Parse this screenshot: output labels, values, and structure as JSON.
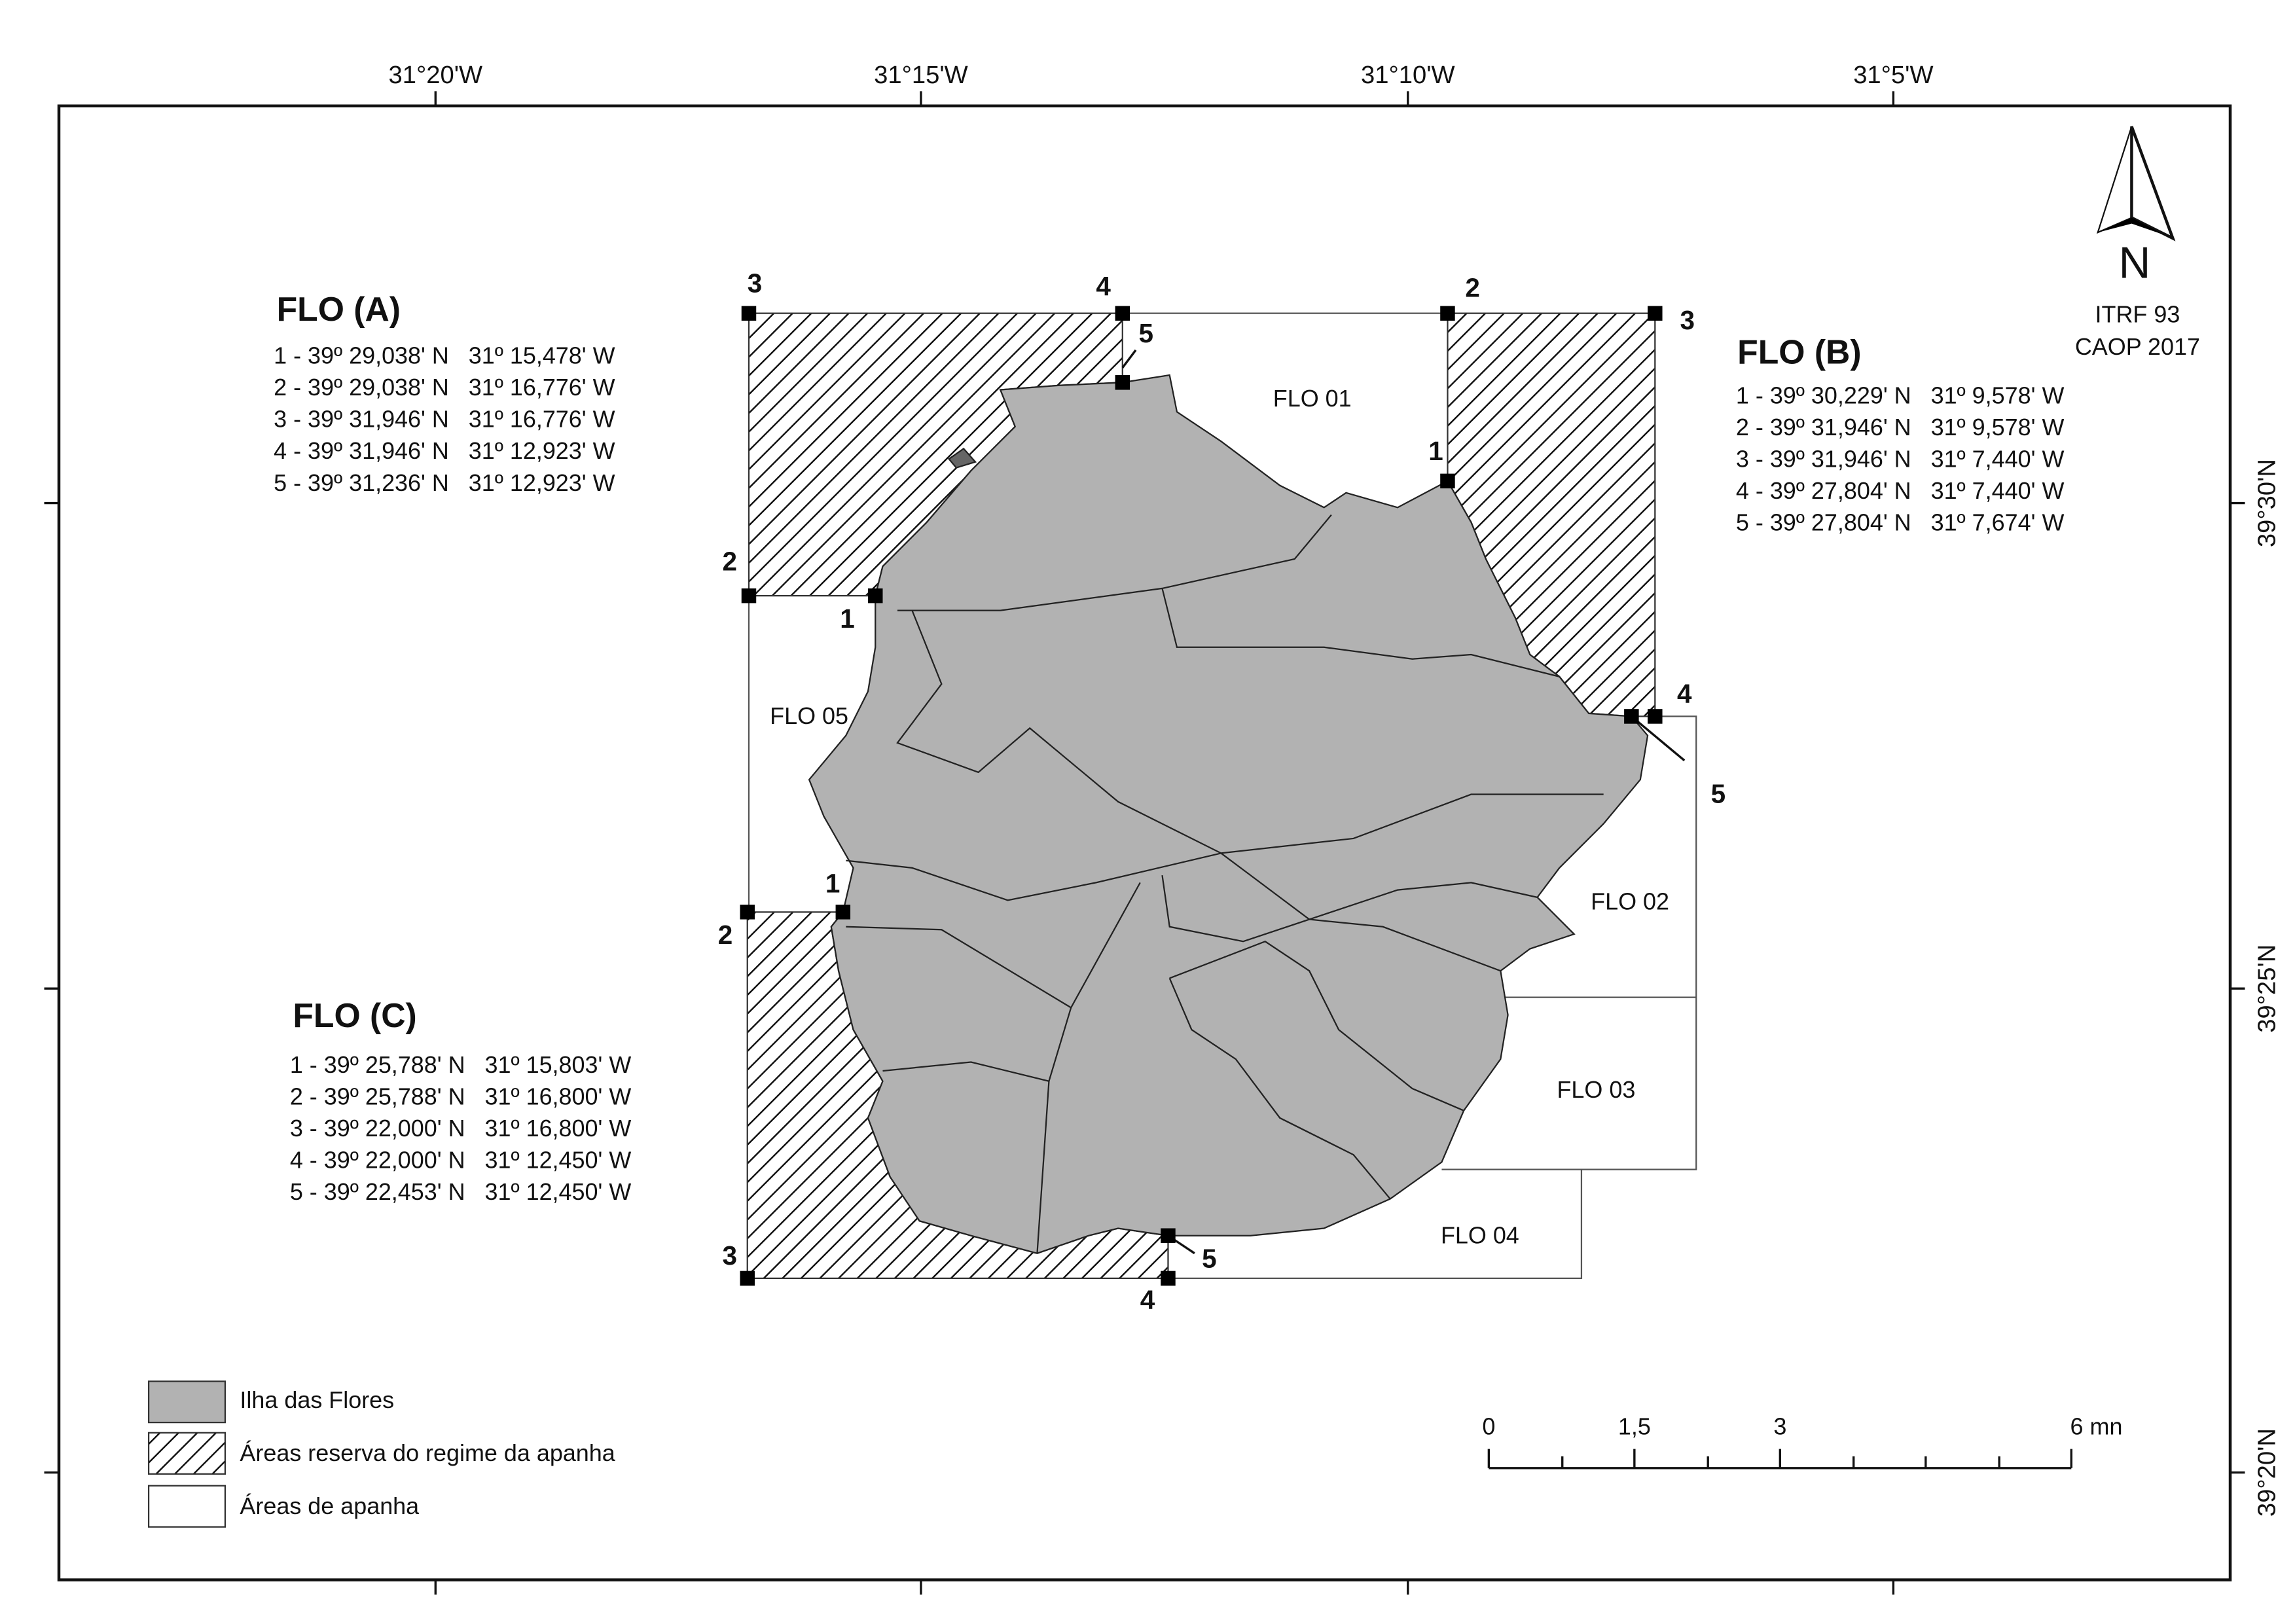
{
  "map": {
    "longitude_labels": [
      "31°20'W",
      "31°15'W",
      "31°10'W",
      "31°5'W"
    ],
    "latitude_labels": [
      "39°30'N",
      "39°25'N",
      "39°20'N"
    ],
    "north": "N",
    "datum": [
      "ITRF 93",
      "CAOP 2017"
    ],
    "areas": [
      "FLO 01",
      "FLO 02",
      "FLO 03",
      "FLO 04",
      "FLO 05"
    ],
    "reserves": [
      {
        "title": "FLO (A)",
        "markers": [
          "1",
          "2",
          "3",
          "4",
          "5"
        ],
        "points": [
          "1 - 39º 29,038' N   31º 15,478' W",
          "2 - 39º 29,038' N   31º 16,776' W",
          "3 - 39º 31,946' N   31º 16,776' W",
          "4 - 39º 31,946' N   31º 12,923' W",
          "5 - 39º 31,236' N   31º 12,923' W"
        ]
      },
      {
        "title": "FLO (B)",
        "markers": [
          "1",
          "2",
          "3",
          "4",
          "5"
        ],
        "points": [
          "1 - 39º 30,229' N   31º 9,578' W",
          "2 - 39º 31,946' N   31º 9,578' W",
          "3 - 39º 31,946' N   31º 7,440' W",
          "4 - 39º 27,804' N   31º 7,440' W",
          "5 - 39º 27,804' N   31º 7,674' W"
        ]
      },
      {
        "title": "FLO (C)",
        "markers": [
          "1",
          "2",
          "3",
          "4",
          "5"
        ],
        "points": [
          "1 - 39º 25,788' N   31º 15,803' W",
          "2 - 39º 25,788' N   31º 16,800' W",
          "3 - 39º 22,000' N   31º 16,800' W",
          "4 - 39º 22,000' N   31º 12,450' W",
          "5 - 39º 22,453' N   31º 12,450' W"
        ]
      }
    ],
    "legend": [
      "Ilha das Flores",
      "Áreas reserva do regime da apanha",
      "Áreas de apanha"
    ],
    "scale": {
      "labels": [
        "0",
        "1,5",
        "3"
      ],
      "end": "6 mn"
    }
  }
}
